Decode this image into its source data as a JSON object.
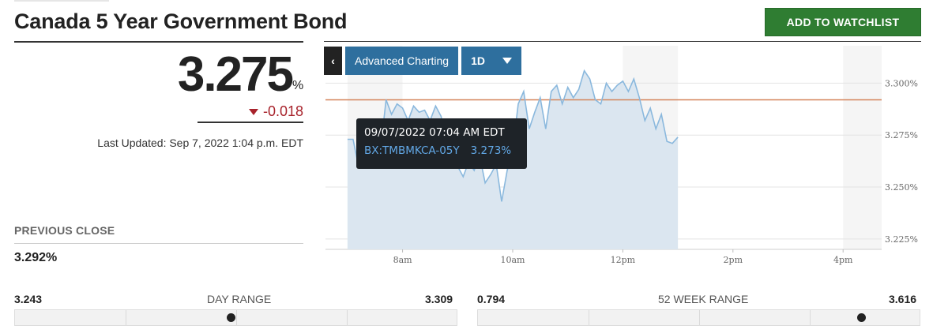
{
  "title": "Canada 5 Year Government Bond",
  "watchlist_button": "ADD TO WATCHLIST",
  "quote": {
    "price": "3.275",
    "unit": "%",
    "change": "-0.018",
    "last_updated": "Last Updated: Sep 7, 2022 1:04 p.m. EDT"
  },
  "previous_close": {
    "label": "PREVIOUS CLOSE",
    "value": "3.292%"
  },
  "toolbar": {
    "back_icon": "chevron-left-icon",
    "advanced": "Advanced Charting",
    "period": "1D"
  },
  "tooltip": {
    "date": "09/07/2022 07:04 AM EDT",
    "symbol": "BX:TMBMKCA-05Y",
    "value": "3.273%"
  },
  "day_range": {
    "label": "DAY RANGE",
    "low": "3.243",
    "high": "3.309",
    "position": 0.49
  },
  "week52_range": {
    "label": "52 WEEK RANGE",
    "low": "0.794",
    "high": "3.616",
    "position": 0.87
  },
  "colors": {
    "accent_green": "#2f7d32",
    "toolbar_blue": "#2e6f9e",
    "down_red": "#a8232c",
    "line_blue": "#8ab8dd",
    "prev_close_line": "#d4845a"
  },
  "chart_data": {
    "type": "area",
    "x_ticks": [
      "8am",
      "10am",
      "12pm",
      "2pm",
      "4pm"
    ],
    "y_ticks": [
      "3.300%",
      "3.275%",
      "3.250%",
      "3.225%"
    ],
    "ylim": [
      3.22,
      3.318
    ],
    "previous_close": 3.292,
    "x_hours": [
      7.0,
      7.1,
      7.2,
      7.3,
      7.4,
      7.5,
      7.6,
      7.7,
      7.8,
      7.9,
      8.0,
      8.1,
      8.2,
      8.3,
      8.4,
      8.5,
      8.6,
      8.7,
      8.8,
      8.9,
      9.0,
      9.1,
      9.2,
      9.3,
      9.4,
      9.5,
      9.6,
      9.7,
      9.8,
      9.9,
      10.0,
      10.1,
      10.2,
      10.3,
      10.4,
      10.5,
      10.6,
      10.7,
      10.8,
      10.9,
      11.0,
      11.1,
      11.2,
      11.3,
      11.4,
      11.5,
      11.6,
      11.7,
      11.8,
      11.9,
      12.0,
      12.1,
      12.2,
      12.3,
      12.4,
      12.5,
      12.6,
      12.7,
      12.8,
      12.9,
      13.0
    ],
    "values": [
      3.273,
      3.273,
      3.26,
      3.26,
      3.26,
      3.26,
      3.268,
      3.292,
      3.285,
      3.29,
      3.288,
      3.282,
      3.289,
      3.286,
      3.287,
      3.282,
      3.289,
      3.284,
      3.27,
      3.268,
      3.26,
      3.255,
      3.262,
      3.258,
      3.265,
      3.252,
      3.256,
      3.261,
      3.243,
      3.258,
      3.268,
      3.29,
      3.296,
      3.278,
      3.286,
      3.293,
      3.278,
      3.296,
      3.299,
      3.29,
      3.298,
      3.293,
      3.297,
      3.306,
      3.302,
      3.292,
      3.29,
      3.3,
      3.296,
      3.299,
      3.301,
      3.296,
      3.302,
      3.293,
      3.282,
      3.288,
      3.278,
      3.285,
      3.272,
      3.271,
      3.274
    ]
  }
}
